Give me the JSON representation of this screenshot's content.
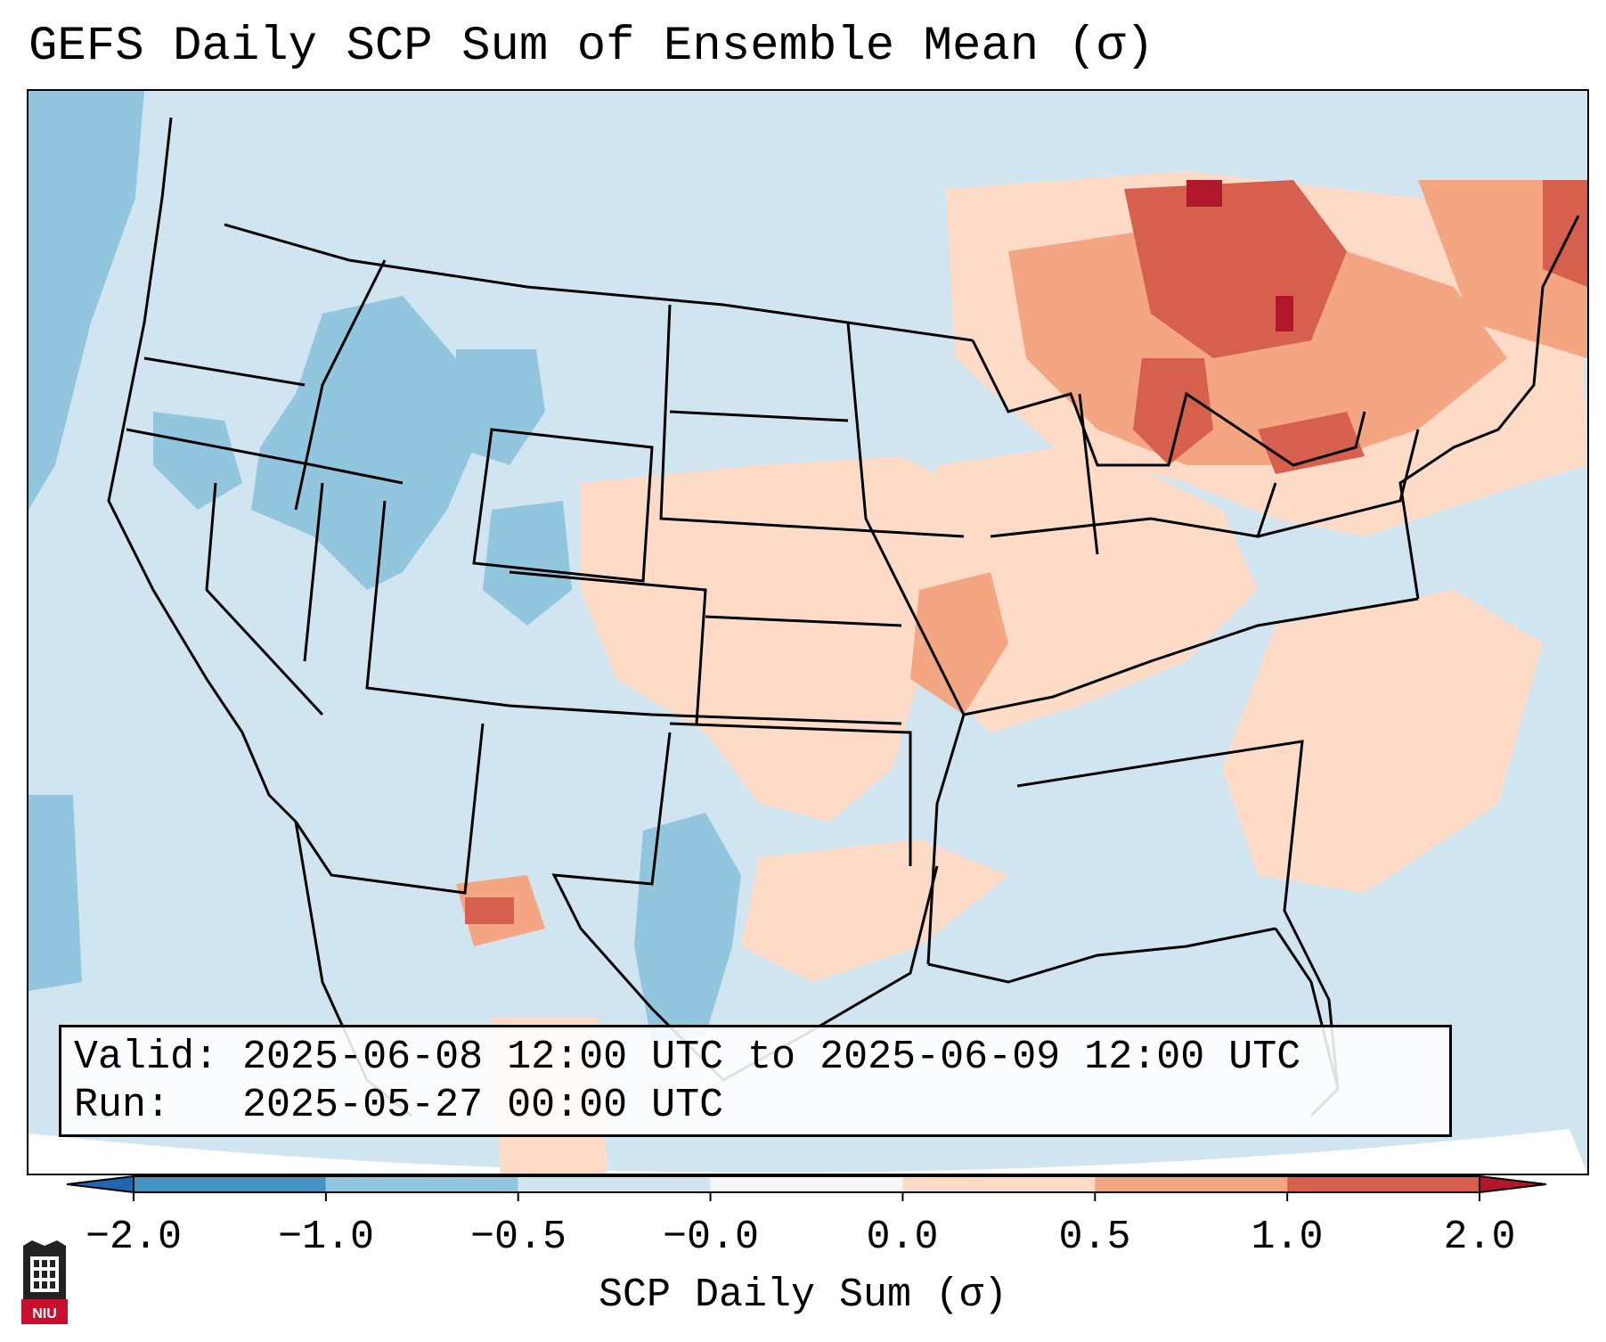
{
  "title": "GEFS Daily SCP Sum of Ensemble Mean (σ)",
  "info": {
    "valid_label": "Valid:",
    "valid_value": "2025-06-08 12:00 UTC to 2025-06-09 12:00 UTC",
    "run_label": "Run:",
    "run_value": "2025-05-27 00:00 UTC"
  },
  "colorbar": {
    "label": "SCP Daily Sum (σ)",
    "ticks": [
      "−2.0",
      "−1.0",
      "−0.5",
      "−0.0",
      "0.0",
      "0.5",
      "1.0",
      "2.0"
    ],
    "bins": [
      {
        "range": "< -2.0",
        "color": "#2166ac"
      },
      {
        "range": "-2.0 to -1.0",
        "color": "#4393c3"
      },
      {
        "range": "-1.0 to -0.5",
        "color": "#92c5de"
      },
      {
        "range": "-0.5 to -0.0",
        "color": "#d1e5f0"
      },
      {
        "range": "-0.0 to 0.0",
        "color": "#f7f7f7"
      },
      {
        "range": "0.0 to 0.5",
        "color": "#fddbc7"
      },
      {
        "range": "0.5 to 1.0",
        "color": "#f4a582"
      },
      {
        "range": "1.0 to 2.0",
        "color": "#d6604d"
      },
      {
        "range": "> 2.0",
        "color": "#b2182b"
      }
    ]
  },
  "map": {
    "projection": "Lambert Conformal (CONUS)",
    "background_color": "#d1e5f0",
    "state_line_color": "#000000",
    "regions": [
      {
        "name": "Pacific Northwest coast",
        "category": "-1.0 to -0.5"
      },
      {
        "name": "Great Basin / Utah / Wyoming",
        "category": "-1.0 to -0.5"
      },
      {
        "name": "Western Colorado",
        "category": "-1.0 to -0.5"
      },
      {
        "name": "South Texas",
        "category": "-1.0 to -0.5"
      },
      {
        "name": "Central Plains (Nebraska, Kansas, Oklahoma)",
        "category": "0.0 to 0.5"
      },
      {
        "name": "Mid-Mississippi Valley",
        "category": "0.5 to 1.0"
      },
      {
        "name": "Ohio Valley",
        "category": "0.0 to 0.5"
      },
      {
        "name": "Gulf Coast",
        "category": "0.0 to 0.5"
      },
      {
        "name": "Great Lakes / Michigan",
        "category": "1.0 to 2.0"
      },
      {
        "name": "Ontario / Quebec",
        "category": "1.0 to 2.0"
      },
      {
        "name": "New England",
        "category": "0.5 to 1.0"
      },
      {
        "name": "Southeast New Mexico",
        "category": "1.0 to 2.0"
      }
    ]
  },
  "logo": {
    "text": "NIU"
  }
}
